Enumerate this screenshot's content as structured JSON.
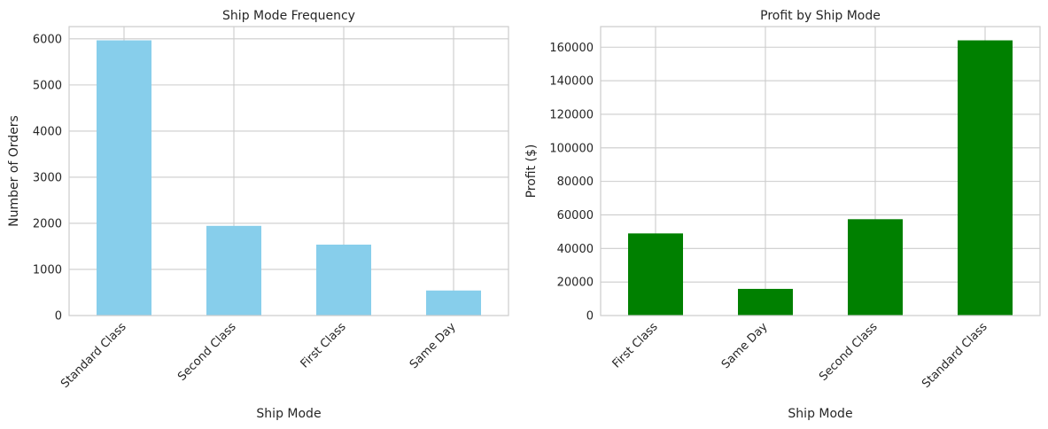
{
  "chart_data": [
    {
      "type": "bar",
      "title": "Ship Mode Frequency",
      "xlabel": "Ship Mode",
      "ylabel": "Number of Orders",
      "categories": [
        "Standard Class",
        "Second Class",
        "First Class",
        "Same Day"
      ],
      "values": [
        5968,
        1945,
        1538,
        543
      ],
      "ylim": [
        0,
        6266
      ],
      "yticks": [
        0,
        1000,
        2000,
        3000,
        4000,
        5000,
        6000
      ],
      "color": "#87CEEB",
      "grid": true
    },
    {
      "type": "bar",
      "title": "Profit by Ship Mode",
      "xlabel": "Ship Mode",
      "ylabel": "Profit ($)",
      "categories": [
        "First Class",
        "Same Day",
        "Second Class",
        "Standard Class"
      ],
      "values": [
        48970,
        15892,
        57447,
        164089
      ],
      "ylim": [
        0,
        172293
      ],
      "yticks": [
        0,
        20000,
        40000,
        60000,
        80000,
        100000,
        120000,
        140000,
        160000
      ],
      "color": "#008000",
      "grid": true
    }
  ]
}
